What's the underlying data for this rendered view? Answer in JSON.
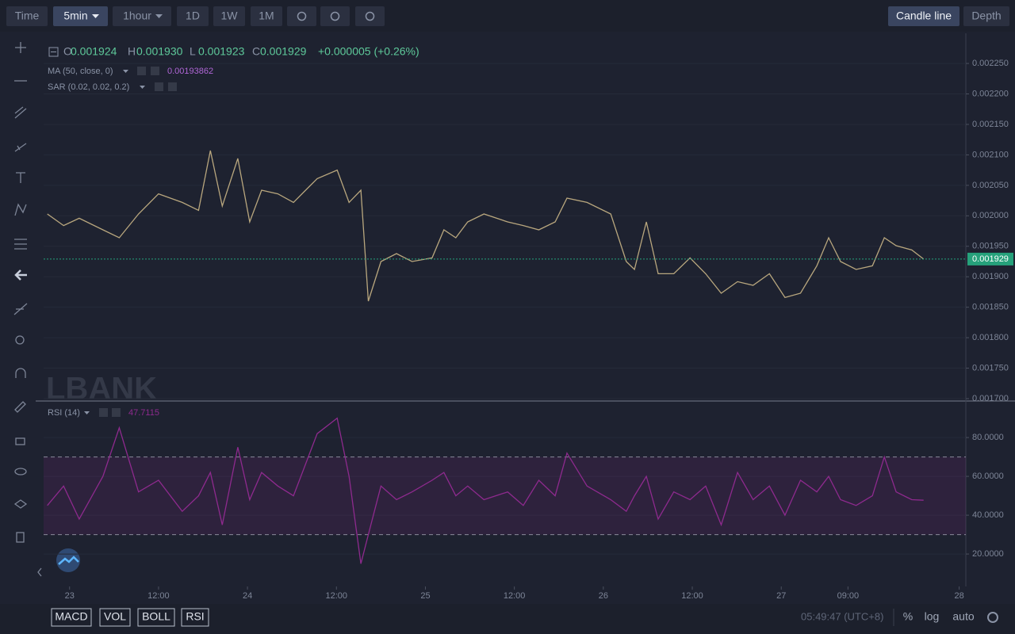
{
  "toolbar": {
    "intervals": [
      "Time",
      "5min",
      "1hour",
      "1D",
      "1W",
      "1M"
    ],
    "views": [
      "Candle line",
      "Depth"
    ]
  },
  "legend": {
    "open_label": "O",
    "open": "0.001924",
    "high_label": "H",
    "high": "0.001930",
    "low_label": "L",
    "low": "0.001923",
    "close_label": "C",
    "close": "0.001929",
    "change": "+0.000005 (+0.26%)",
    "ma": "MA (50, close, 0)",
    "ma_value": "0.00193862",
    "sar": "SAR (0.02, 0.02, 0.2)"
  },
  "watermark": "LBANK",
  "chart_data": [
    {
      "type": "line",
      "x": [
        -3.0,
        -0.8,
        1.3,
        4.5,
        6.7,
        9.3,
        12.0,
        15.2,
        17.4,
        19.0,
        20.6,
        22.7,
        24.3,
        25.9,
        28.1,
        30.2,
        33.4,
        36.1,
        37.7,
        39.3,
        40.3,
        42.0,
        44.1,
        46.2,
        48.9,
        50.5,
        52.1,
        53.7,
        55.9,
        59.1,
        61.2,
        63.3,
        65.5,
        67.1,
        69.8,
        73.0,
        75.1,
        76.2,
        77.8,
        79.4,
        81.5,
        83.7,
        85.8,
        87.9,
        90.1,
        92.2,
        94.4,
        96.5,
        98.6,
        100.8,
        102.4,
        104.0,
        106.1,
        108.3,
        109.9,
        111.5,
        113.6,
        115.2
      ],
      "series": [
        {
          "color": "#b9a77e",
          "values": [
            0.002003,
            0.001984,
            0.001996,
            0.001977,
            0.001964,
            0.002003,
            0.002036,
            0.002022,
            0.002009,
            0.002107,
            0.002016,
            0.002094,
            0.00199,
            0.002042,
            0.002036,
            0.002022,
            0.002061,
            0.002075,
            0.002022,
            0.002042,
            0.00186,
            0.001925,
            0.001938,
            0.001925,
            0.001931,
            0.001977,
            0.001964,
            0.00199,
            0.002003,
            0.00199,
            0.001984,
            0.001977,
            0.00199,
            0.002029,
            0.002022,
            0.002003,
            0.001925,
            0.001912,
            0.00199,
            0.001905,
            0.001905,
            0.001931,
            0.001905,
            0.001873,
            0.001892,
            0.001886,
            0.001905,
            0.001866,
            0.001873,
            0.001918,
            0.001964,
            0.001925,
            0.001912,
            0.001918,
            0.001964,
            0.001951,
            0.001944,
            0.001929
          ]
        }
      ],
      "xlim": [
        -3.5,
        120.9
      ],
      "ylim": [
        0.0016974,
        0.0022995
      ],
      "yticks": [
        {
          "value": 0.0017,
          "label": "0.001700"
        },
        {
          "value": 0.00175,
          "label": "0.001750"
        },
        {
          "value": 0.0018,
          "label": "0.001800"
        },
        {
          "value": 0.00185,
          "label": "0.001850"
        },
        {
          "value": 0.0019,
          "label": "0.001900"
        },
        {
          "value": 0.00195,
          "label": "0.001950"
        },
        {
          "value": 0.002,
          "label": "0.002000"
        },
        {
          "value": 0.00205,
          "label": "0.002050"
        },
        {
          "value": 0.0021,
          "label": "0.002100"
        },
        {
          "value": 0.00215,
          "label": "0.002150"
        },
        {
          "value": 0.0022,
          "label": "0.002200"
        },
        {
          "value": 0.00225,
          "label": "0.002250"
        }
      ],
      "grid": true,
      "current": {
        "value": 0.001929,
        "label": "0.001929",
        "color": "#26a17b"
      }
    },
    {
      "type": "line",
      "title": "RSI (14)",
      "value_label": "47.7115",
      "x": [
        -3.0,
        -0.8,
        1.3,
        4.5,
        6.7,
        9.3,
        12.0,
        15.2,
        17.4,
        19.0,
        20.6,
        22.7,
        24.3,
        25.9,
        28.1,
        30.2,
        33.4,
        36.1,
        37.7,
        39.3,
        40.3,
        42.0,
        44.1,
        46.2,
        48.9,
        50.5,
        52.1,
        53.7,
        55.9,
        59.1,
        61.2,
        63.3,
        65.5,
        67.1,
        69.8,
        73.0,
        75.1,
        76.2,
        77.8,
        79.4,
        81.5,
        83.7,
        85.8,
        87.9,
        90.1,
        92.2,
        94.4,
        96.5,
        98.6,
        100.8,
        102.4,
        104.0,
        106.1,
        108.3,
        109.9,
        111.5,
        113.6,
        115.2
      ],
      "series": [
        {
          "color": "#8e2a8e",
          "values": [
            45,
            55,
            38,
            60,
            85,
            52,
            58,
            42,
            50,
            62,
            35,
            75,
            48,
            62,
            55,
            50,
            82,
            90,
            60,
            15,
            30,
            55,
            48,
            52,
            58,
            62,
            50,
            55,
            48,
            52,
            45,
            58,
            50,
            72,
            55,
            48,
            42,
            50,
            60,
            38,
            52,
            48,
            55,
            35,
            62,
            48,
            55,
            40,
            58,
            52,
            60,
            48,
            45,
            50,
            70,
            52,
            48,
            47.7115
          ]
        }
      ],
      "bands": [
        30,
        70
      ],
      "xlim": [
        -3.5,
        120.9
      ],
      "xticks": [
        {
          "value": 0,
          "label": "23"
        },
        {
          "value": 12,
          "label": "12:00"
        },
        {
          "value": 24,
          "label": "24"
        },
        {
          "value": 36,
          "label": "12:00"
        },
        {
          "value": 48,
          "label": "25"
        },
        {
          "value": 60,
          "label": "12:00"
        },
        {
          "value": 72,
          "label": "26"
        },
        {
          "value": 84,
          "label": "12:00"
        },
        {
          "value": 96,
          "label": "27"
        },
        {
          "value": 105,
          "label": "09:00"
        },
        {
          "value": 120,
          "label": "28"
        }
      ],
      "ylim": [
        3.3,
        98.4
      ],
      "yticks": [
        {
          "value": 20,
          "label": "20.0000"
        },
        {
          "value": 40,
          "label": "40.0000"
        },
        {
          "value": 60,
          "label": "60.0000"
        },
        {
          "value": 80,
          "label": "80.0000"
        }
      ],
      "grid": true
    }
  ],
  "indicators": [
    "MACD",
    "VOL",
    "BOLL",
    "RSI"
  ],
  "status": {
    "time": "05:49:47 (UTC+8)",
    "percent": "%",
    "log": "log",
    "auto": "auto"
  }
}
